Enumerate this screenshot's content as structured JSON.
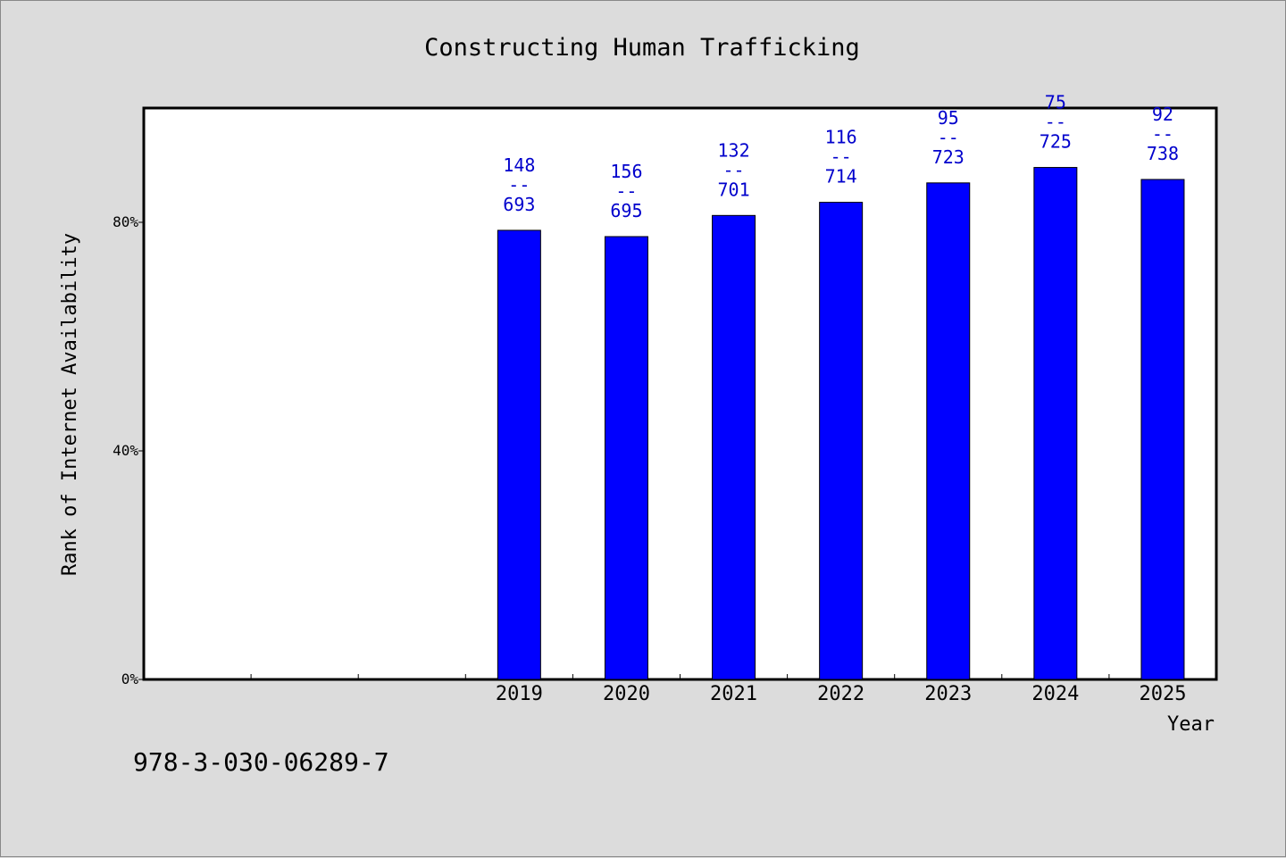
{
  "chart_data": {
    "type": "bar",
    "title": "Constructing Human Trafficking",
    "xlabel": "Year",
    "ylabel": "Rank of Internet Availability",
    "y_ticks": [
      "0%",
      "40%",
      "80%"
    ],
    "ylim": [
      0,
      100
    ],
    "x_slots": 10,
    "categories": [
      "2019",
      "2020",
      "2021",
      "2022",
      "2023",
      "2024",
      "2025"
    ],
    "category_slot_start": 3,
    "values": [
      78.6,
      77.5,
      81.2,
      83.5,
      86.9,
      89.6,
      87.5
    ],
    "bar_labels": [
      {
        "rank": "148",
        "sep": "--",
        "total": "693"
      },
      {
        "rank": "156",
        "sep": "--",
        "total": "695"
      },
      {
        "rank": "132",
        "sep": "--",
        "total": "701"
      },
      {
        "rank": "116",
        "sep": "--",
        "total": "714"
      },
      {
        "rank": "95",
        "sep": "--",
        "total": "723"
      },
      {
        "rank": "75",
        "sep": "--",
        "total": "725"
      },
      {
        "rank": "92",
        "sep": "--",
        "total": "738"
      }
    ],
    "bar_color": "#0000ff",
    "label_color": "#0000cc",
    "grid": false,
    "legend": "none"
  },
  "footer": {
    "isbn": "978-3-030-06289-7"
  }
}
